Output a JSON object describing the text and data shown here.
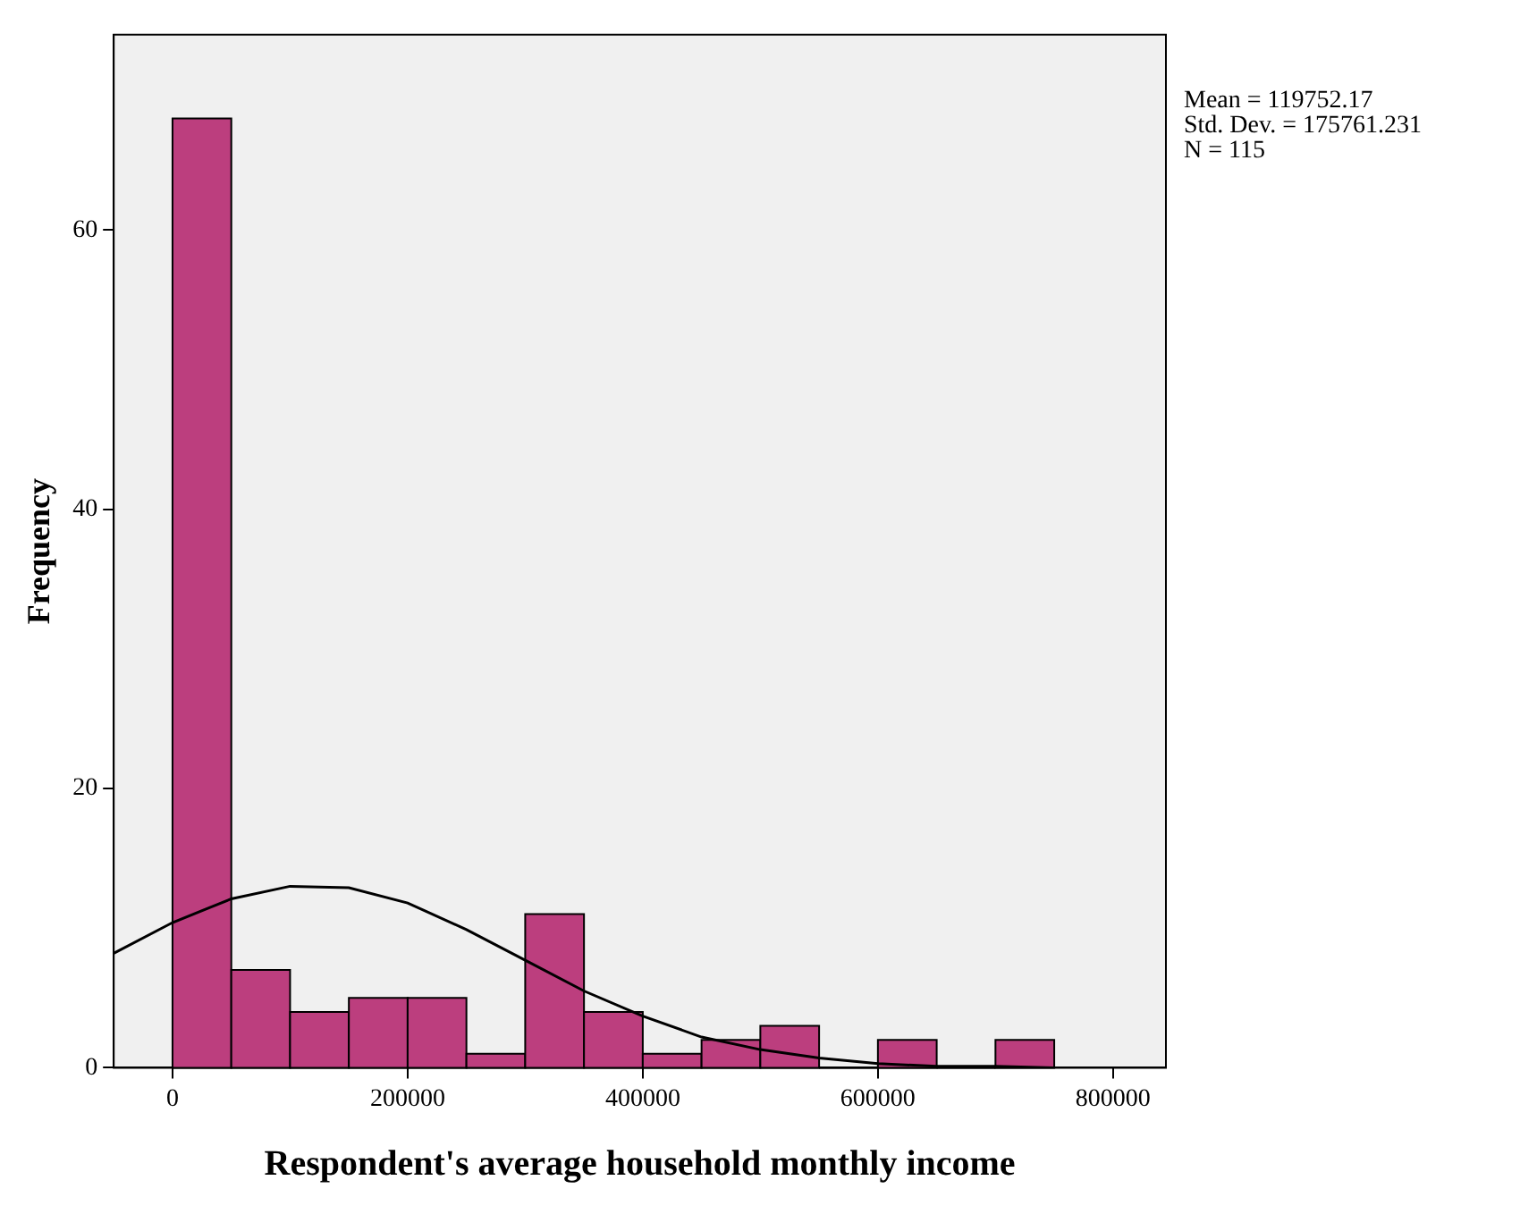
{
  "chart_data": {
    "type": "histogram",
    "xlabel": "Respondent's average household monthly income",
    "ylabel": "Frequency",
    "bins": [
      0,
      50000,
      100000,
      150000,
      200000,
      250000,
      300000,
      350000,
      400000,
      450000,
      500000,
      550000,
      600000,
      650000,
      700000,
      750000
    ],
    "values": [
      68,
      7,
      4,
      5,
      5,
      1,
      11,
      4,
      1,
      2,
      3,
      0,
      2,
      0,
      2
    ],
    "color": "#bc3e7e",
    "series": [
      {
        "type": "line",
        "color": "#000000",
        "x": [
          -50000,
          0,
          50000,
          100000,
          150000,
          200000,
          250000,
          300000,
          350000,
          400000,
          450000,
          500000,
          550000,
          600000,
          650000,
          700000,
          750000,
          800000
        ],
        "values": [
          8.2,
          10.4,
          12.1,
          13.0,
          12.9,
          11.8,
          9.9,
          7.7,
          5.5,
          3.7,
          2.2,
          1.3,
          0.7,
          0.3,
          0.1,
          0.1,
          0,
          0
        ]
      }
    ],
    "xlim": [
      -50000,
      845000
    ],
    "xticks": [
      0,
      200000,
      400000,
      600000,
      800000
    ],
    "ylim": [
      0,
      74
    ],
    "yticks": [
      0,
      20,
      40,
      60
    ],
    "grid": false,
    "legend": false,
    "annotations": [
      "Mean = 119752.17",
      "Std. Dev. = 175761.231",
      "N = 115"
    ]
  }
}
